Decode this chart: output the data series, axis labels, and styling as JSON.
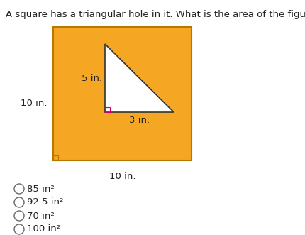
{
  "title": "A square has a triangular hole in it. What is the area of the figure?",
  "title_fontsize": 9.5,
  "title_color": "#222222",
  "square_color": "#F5A623",
  "square_edge_color": "#b87800",
  "triangle_color": "#ffffff",
  "triangle_edge_color": "#333333",
  "choices": [
    "85 in²",
    "92.5 in²",
    "70 in²",
    "100 in²"
  ],
  "choice_fontsize": 9.5,
  "fig_width": 4.31,
  "fig_height": 3.31,
  "dpi": 100
}
